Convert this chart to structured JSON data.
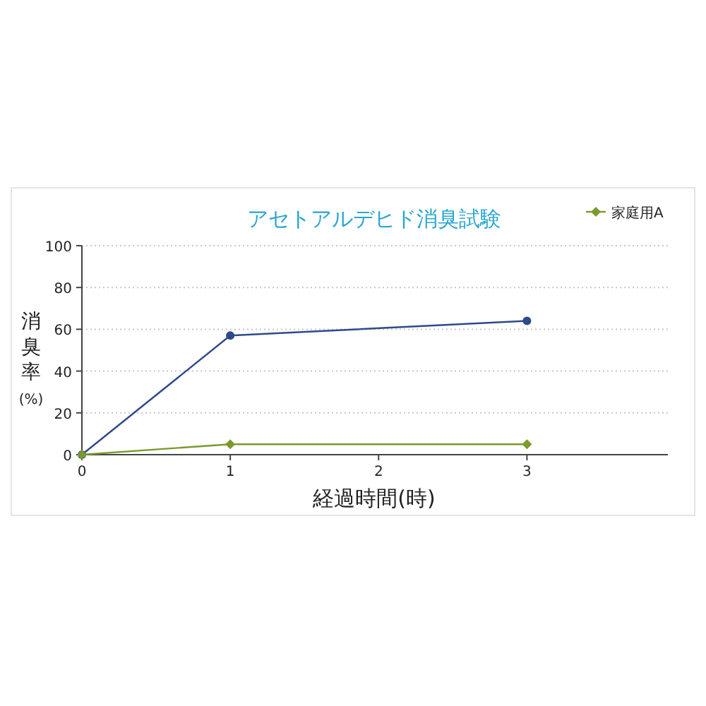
{
  "chart_data": {
    "type": "line",
    "title": "アセトアルデヒド消臭試験",
    "xlabel": "経過時間(時)",
    "ylabel": "消臭率(%)",
    "x": [
      0,
      1,
      3
    ],
    "series": [
      {
        "color": "#2e4a8a",
        "marker": "circle",
        "values": [
          0,
          57,
          64
        ]
      },
      {
        "name": "家庭用A",
        "color": "#7a9a2e",
        "marker": "diamond",
        "values": [
          0,
          5,
          5
        ]
      }
    ],
    "xlim": [
      0,
      3.95
    ],
    "xticks": [
      0,
      1,
      2,
      3
    ],
    "ylim": [
      0,
      100
    ],
    "yticks": [
      0,
      20,
      40,
      60,
      80,
      100
    ],
    "grid": "y",
    "legend": "top right"
  }
}
